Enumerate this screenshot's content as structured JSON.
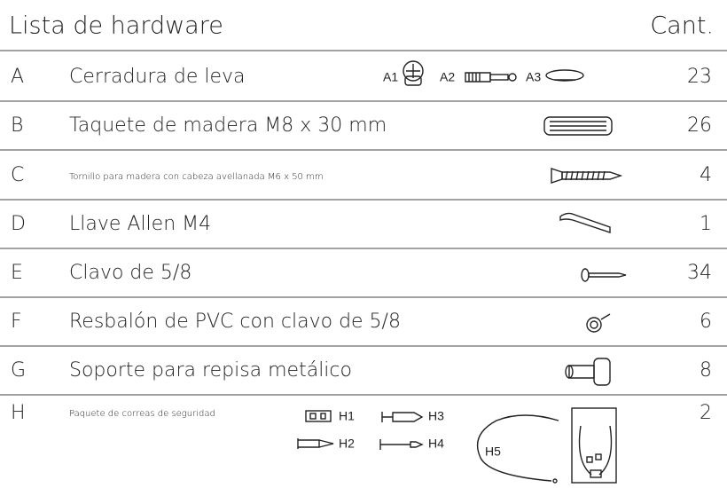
{
  "header": {
    "title": "Lista de hardware",
    "quantity_label": "Cant."
  },
  "rows": [
    {
      "letter": "A",
      "description": "Cerradura de leva",
      "parts": [
        "A1",
        "A2",
        "A3"
      ],
      "quantity": 23
    },
    {
      "letter": "B",
      "description": "Taquete de madera M8 x 30 mm",
      "quantity": 26
    },
    {
      "letter": "C",
      "description": "Tornillo para madera con cabeza avellanada M6 x 50 mm",
      "quantity": 4
    },
    {
      "letter": "D",
      "description": "Llave Allen M4",
      "quantity": 1
    },
    {
      "letter": "E",
      "description": "Clavo de 5/8",
      "quantity": 34
    },
    {
      "letter": "F",
      "description": "Resbalón de PVC con clavo de 5/8",
      "quantity": 6
    },
    {
      "letter": "G",
      "description": "Soporte para repisa metálico",
      "quantity": 8
    },
    {
      "letter": "H",
      "description": "Paquete de correas de seguridad",
      "parts": [
        "H1",
        "H2",
        "H3",
        "H4",
        "H5"
      ],
      "quantity": 2
    }
  ]
}
